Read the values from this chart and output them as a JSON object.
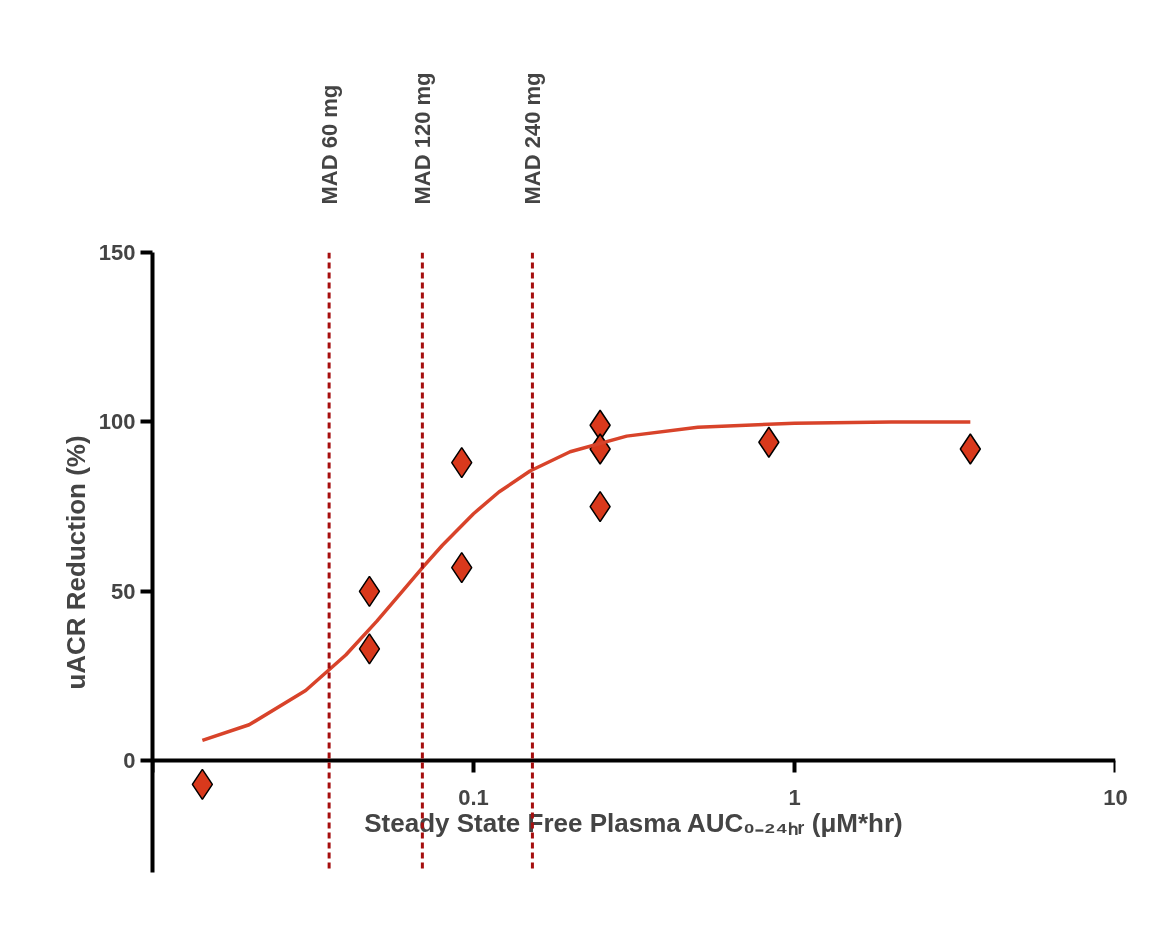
{
  "chart_data": {
    "type": "scatter",
    "xlabel": "Steady State Free Plasma AUC₀₋₂₄ₕᵣ (μM*hr)",
    "ylabel": "uACR Reduction (%)",
    "log": "x",
    "xlim": [
      0.01,
      10
    ],
    "xticks": [
      {
        "value": 0.01,
        "label": null
      },
      {
        "value": 0.1,
        "label": "0.1"
      },
      {
        "value": 1,
        "label": "1"
      },
      {
        "value": 10,
        "label": "10"
      }
    ],
    "ylim": [
      -33,
      150
    ],
    "yticks": [
      0,
      50,
      100,
      150
    ],
    "grid": false,
    "series": [
      {
        "color": "#d9391c",
        "marker": "diamond",
        "x": [
          0.0143,
          0.0474,
          0.0474,
          0.0919,
          0.0919,
          0.248,
          0.248,
          0.248,
          0.832,
          3.53
        ],
        "values": [
          -7,
          50,
          33,
          88,
          57,
          99,
          92,
          75,
          94,
          92
        ]
      },
      {
        "type": "line",
        "color": "#d8432a",
        "marker": "none",
        "x": [
          0.0143,
          0.02,
          0.03,
          0.04,
          0.05,
          0.06,
          0.07,
          0.08,
          0.1,
          0.12,
          0.15,
          0.2,
          0.3,
          0.5,
          1,
          2,
          3.53
        ],
        "values": [
          6,
          10.6,
          20.7,
          31.2,
          41.2,
          50,
          57.4,
          63.6,
          72.9,
          79.3,
          85.5,
          91.2,
          95.8,
          98.4,
          99.6,
          100,
          100
        ]
      }
    ],
    "ref_lines": [
      {
        "axis": "x",
        "value": 0.0355,
        "label": "MAD 60 mg",
        "color": "#a50f0f",
        "line_style": "dashed"
      },
      {
        "axis": "x",
        "value": 0.0693,
        "label": "MAD 120 mg",
        "color": "#a50f0f",
        "line_style": "dashed"
      },
      {
        "axis": "x",
        "value": 0.1526,
        "label": "MAD 240 mg",
        "color": "#a50f0f",
        "line_style": "dashed"
      }
    ]
  }
}
